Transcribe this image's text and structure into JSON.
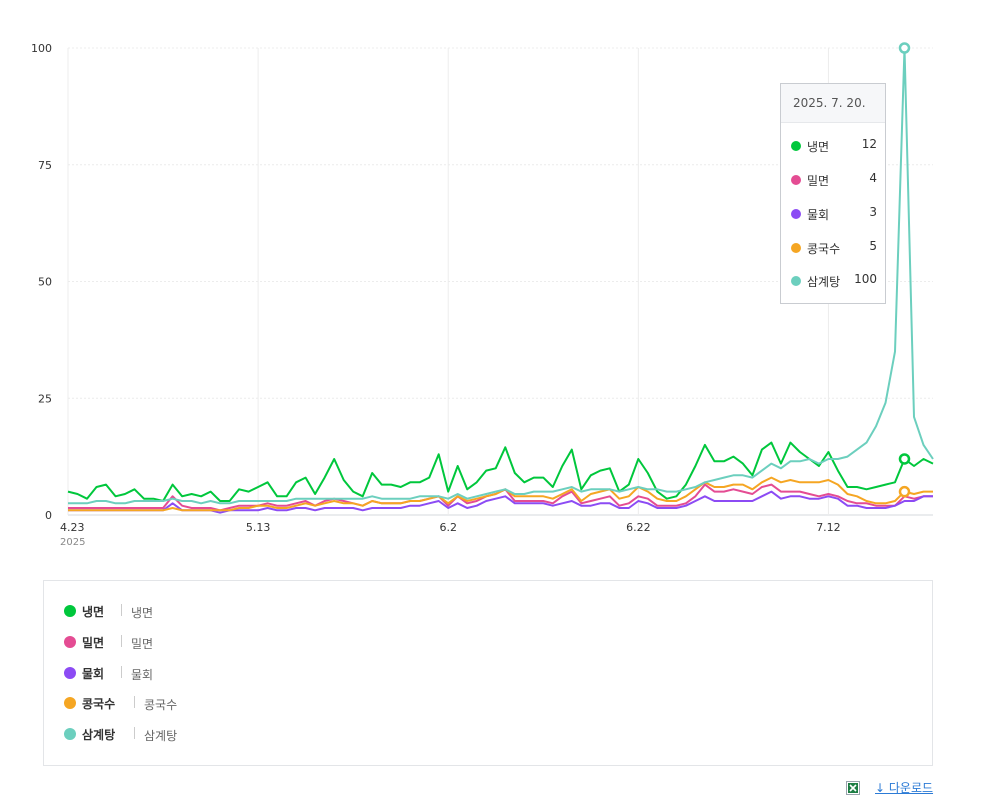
{
  "chart_data": {
    "type": "line",
    "title": "",
    "xlabel": "",
    "ylabel": "",
    "ylim": [
      0,
      100
    ],
    "yticks": [
      "0",
      "25",
      "50",
      "75",
      "100"
    ],
    "xticks": [
      {
        "label": "4.23",
        "date": "2025-04-23"
      },
      {
        "label": "5.13",
        "date": "2025-05-13"
      },
      {
        "label": "6.2",
        "date": "2025-06-02"
      },
      {
        "label": "6.22",
        "date": "2025-06-22"
      },
      {
        "label": "7.12",
        "date": "2025-07-12"
      }
    ],
    "year_label": "2025",
    "x_start": "2025-04-23",
    "x_end": "2025-07-23",
    "grid": true,
    "series": [
      {
        "name": "냉면",
        "color": "#00c73c",
        "values": [
          5,
          4.5,
          3.5,
          6,
          6.5,
          4,
          4.5,
          5.5,
          3.5,
          3.5,
          3,
          6.5,
          4,
          4.5,
          4,
          5,
          3,
          3,
          5.5,
          5,
          6,
          7,
          4,
          4,
          7,
          8,
          4.5,
          8,
          12,
          7.5,
          5,
          4,
          9,
          6.5,
          6.5,
          6,
          7,
          7,
          8,
          13,
          5,
          10.5,
          5.5,
          7,
          9.5,
          10,
          14.5,
          9,
          7,
          8,
          8,
          6,
          10.5,
          14,
          5.5,
          8.5,
          9.5,
          10,
          5,
          6.5,
          12,
          9,
          5,
          3.5,
          4,
          6.5,
          10.5,
          15,
          11.5,
          11.5,
          12.5,
          11,
          8.5,
          14,
          15.5,
          11,
          15.5,
          13.5,
          12,
          10.5,
          13.5,
          9.5,
          6,
          6,
          5.5,
          6,
          6.5,
          7,
          12,
          10.5,
          12,
          11
        ]
      },
      {
        "name": "밀면",
        "color": "#e44c93",
        "values": [
          1.5,
          1.5,
          1.5,
          1.5,
          1.5,
          1.5,
          1.5,
          1.5,
          1.5,
          1.5,
          1.5,
          4,
          2,
          1.5,
          1.5,
          1.5,
          1,
          1.5,
          2,
          2,
          2,
          2.5,
          2,
          2,
          2.5,
          3,
          2,
          3,
          3.5,
          3,
          2.5,
          2,
          3,
          2.5,
          2.5,
          2.5,
          3,
          3,
          3.5,
          4,
          2,
          4,
          2.5,
          3,
          4,
          4.5,
          5.5,
          3,
          3,
          3,
          3,
          2.5,
          4,
          5,
          2.5,
          3,
          3.5,
          4,
          2,
          2.5,
          4,
          3.5,
          2,
          2,
          2,
          2.5,
          4,
          6.5,
          5,
          5,
          5.5,
          5,
          4.5,
          6,
          6.5,
          5,
          5,
          5,
          4.5,
          4,
          4.5,
          4,
          3,
          2.5,
          2.5,
          2,
          2,
          2,
          4,
          3.5,
          4,
          4
        ]
      },
      {
        "name": "물회",
        "color": "#8c4bf4",
        "values": [
          1,
          1,
          1,
          1,
          1,
          1,
          1,
          1,
          1,
          1,
          1,
          2.5,
          1,
          1,
          1,
          1,
          0.5,
          1,
          1,
          1,
          1,
          1.5,
          1,
          1,
          1.5,
          1.5,
          1,
          1.5,
          1.5,
          1.5,
          1.5,
          1,
          1.5,
          1.5,
          1.5,
          1.5,
          2,
          2,
          2.5,
          3,
          1.5,
          2.5,
          1.5,
          2,
          3,
          3.5,
          4,
          2.5,
          2.5,
          2.5,
          2.5,
          2,
          2.5,
          3,
          2,
          2,
          2.5,
          2.5,
          1.5,
          1.5,
          3,
          2.5,
          1.5,
          1.5,
          1.5,
          2,
          3,
          4,
          3,
          3,
          3,
          3,
          3,
          4,
          5,
          3.5,
          4,
          4,
          3.5,
          3.5,
          4,
          3.5,
          2,
          2,
          1.5,
          1.5,
          1.5,
          2,
          3,
          3,
          4,
          4
        ]
      },
      {
        "name": "콩국수",
        "color": "#f5a623",
        "values": [
          1,
          1,
          1,
          1,
          1,
          1,
          1,
          1,
          1,
          1,
          1,
          1.5,
          1,
          1,
          1,
          1,
          1,
          1,
          1.5,
          1.5,
          2,
          2,
          1.5,
          1.5,
          2,
          2.5,
          2,
          2.5,
          3,
          2.5,
          2.5,
          2,
          3,
          2.5,
          2.5,
          2.5,
          3,
          3,
          3.5,
          4,
          2.5,
          4,
          3,
          3.5,
          4,
          4.5,
          5.5,
          4,
          4,
          4,
          4,
          3.5,
          4.5,
          5.5,
          3,
          4.5,
          5,
          5.5,
          3.5,
          4,
          6,
          5,
          3.5,
          3,
          3,
          4,
          5.5,
          7,
          6,
          6,
          6.5,
          6.5,
          5.5,
          7,
          8,
          7,
          7.5,
          7,
          7,
          7,
          7.5,
          6.5,
          4.5,
          4,
          3,
          2.5,
          2.5,
          3,
          5,
          4.5,
          5,
          5
        ]
      },
      {
        "name": "삼계탕",
        "color": "#6ccfbe",
        "values": [
          2.5,
          2.5,
          2.5,
          3,
          3,
          2.5,
          2.5,
          3,
          3,
          3,
          3,
          3.5,
          3,
          3,
          2.5,
          3,
          2.5,
          2.5,
          3,
          3,
          3,
          3,
          3,
          3,
          3.5,
          3.5,
          3.5,
          3.5,
          3.5,
          3.5,
          3.5,
          3.5,
          4,
          3.5,
          3.5,
          3.5,
          3.5,
          4,
          4,
          4,
          3.5,
          4.5,
          3.5,
          4,
          4.5,
          5,
          5.5,
          4.5,
          4.5,
          5,
          5,
          5,
          5.5,
          6,
          5,
          5.5,
          5.5,
          5.5,
          5,
          5.5,
          6,
          5.5,
          5.5,
          5,
          5,
          5.5,
          6,
          7,
          7.5,
          8,
          8.5,
          8.5,
          8,
          9.5,
          11,
          10,
          11.5,
          11.5,
          12,
          11,
          12,
          12,
          12.5,
          14,
          15.5,
          19,
          24,
          35,
          100,
          21,
          15,
          12
        ]
      }
    ],
    "highlight": {
      "date": "2025-07-20",
      "series": [
        "냉면",
        "콩국수",
        "삼계탕"
      ]
    }
  },
  "tooltip": {
    "date": "2025. 7. 20.",
    "rows": [
      {
        "name": "냉면",
        "value": "12",
        "color": "#00c73c"
      },
      {
        "name": "밀면",
        "value": "4",
        "color": "#e44c93"
      },
      {
        "name": "물회",
        "value": "3",
        "color": "#8c4bf4"
      },
      {
        "name": "콩국수",
        "value": "5",
        "color": "#f5a623"
      },
      {
        "name": "삼계탕",
        "value": "100",
        "color": "#6ccfbe"
      }
    ]
  },
  "legend": [
    {
      "name": "냉면",
      "keyword": "냉면",
      "color": "#00c73c"
    },
    {
      "name": "밀면",
      "keyword": "밀면",
      "color": "#e44c93"
    },
    {
      "name": "물회",
      "keyword": "물회",
      "color": "#8c4bf4"
    },
    {
      "name": "콩국수",
      "keyword": "콩국수",
      "color": "#f5a623"
    },
    {
      "name": "삼계탕",
      "keyword": "삼계탕",
      "color": "#6ccfbe"
    }
  ],
  "download": {
    "label": "↓ 다운로드",
    "icon": "excel-icon"
  }
}
